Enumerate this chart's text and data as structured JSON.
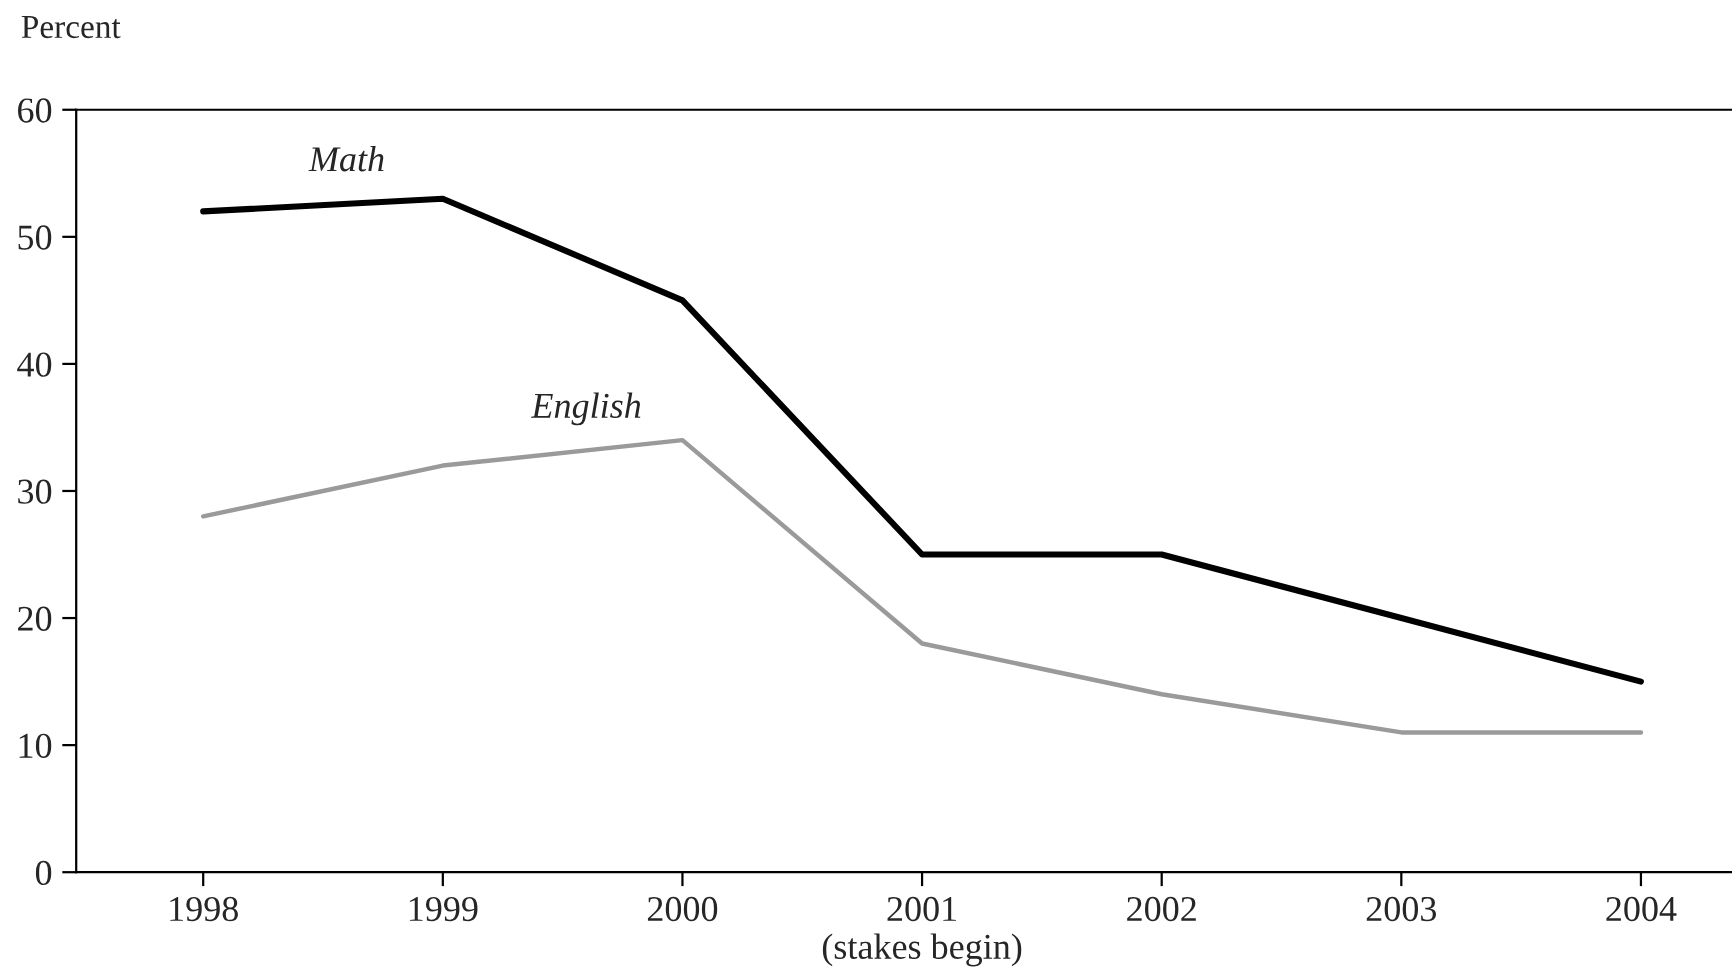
{
  "chart_data": {
    "type": "line",
    "ylabel": "Percent",
    "categories": [
      "1998",
      "1999",
      "2000",
      "2001\n(stakes begin)",
      "2002",
      "2003",
      "2004"
    ],
    "series": [
      {
        "name": "Math",
        "color": "#000000",
        "values": [
          52,
          53,
          45,
          25,
          25,
          20,
          15
        ]
      },
      {
        "name": "English",
        "color": "#9a9a9a",
        "values": [
          28,
          32,
          34,
          18,
          14,
          11,
          11
        ]
      }
    ],
    "ylim": [
      0,
      60
    ],
    "yticks": [
      0,
      10,
      20,
      30,
      40,
      50,
      60
    ],
    "grid": false,
    "legend": false,
    "marker": "none",
    "line_style": "solid"
  }
}
